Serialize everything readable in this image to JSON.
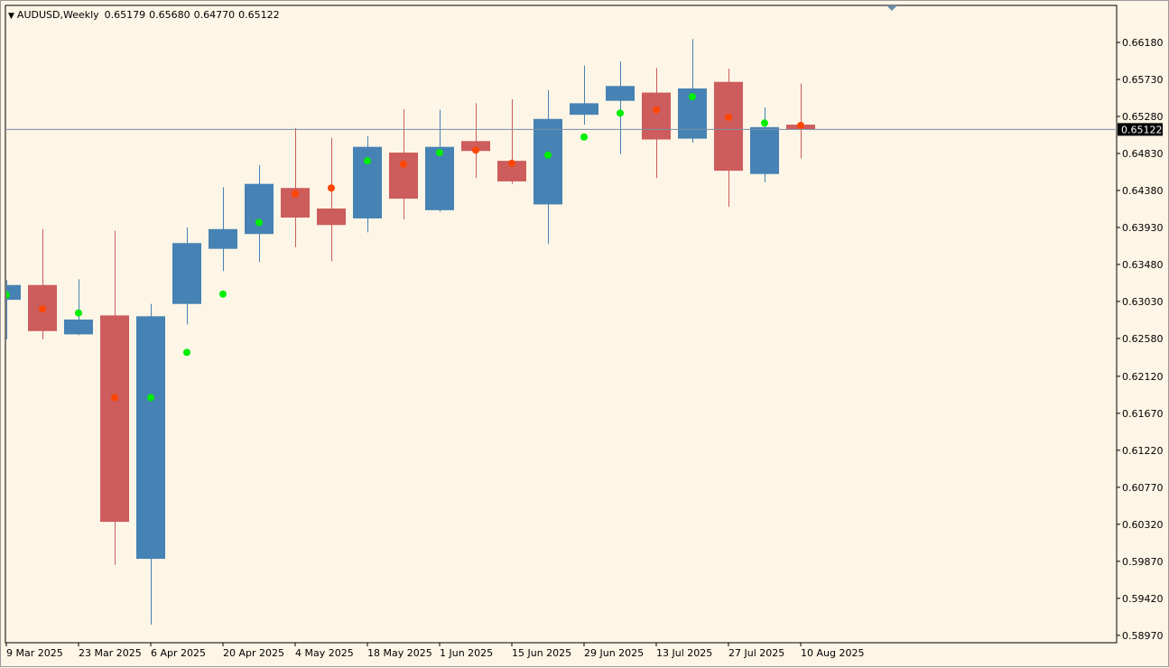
{
  "header": {
    "symbol": "AUDUSD,Weekly",
    "open": "0.65179",
    "high": "0.65680",
    "low": "0.64770",
    "close": "0.65122"
  },
  "colors": {
    "bull": "#4682b4",
    "bear": "#cd5c5c",
    "dot_bull": "#00ee00",
    "dot_bear": "#ff4500",
    "background": "#fdf5e6",
    "price_line": "#7a8fa6",
    "current_price_bg": "#000000",
    "current_price_text": "#ffffff"
  },
  "chart_data": {
    "type": "candlestick",
    "ylim": [
      0.5888,
      0.6663
    ],
    "y_ticks": [
      "0.66180",
      "0.65730",
      "0.65280",
      "0.64830",
      "0.64380",
      "0.63930",
      "0.63480",
      "0.63030",
      "0.62580",
      "0.62120",
      "0.61670",
      "0.61220",
      "0.60770",
      "0.60320",
      "0.59870",
      "0.59420",
      "0.58970"
    ],
    "x_labels": [
      "9 Mar 2025",
      "23 Mar 2025",
      "6 Apr 2025",
      "20 Apr 2025",
      "4 May 2025",
      "18 May 2025",
      "1 Jun 2025",
      "15 Jun 2025",
      "29 Jun 2025",
      "13 Jul 2025",
      "27 Jul 2025",
      "10 Aug 2025"
    ],
    "current_price": "0.65122",
    "candles": [
      {
        "o": 0.6305,
        "h": 0.6329,
        "l": 0.6257,
        "c": 0.6323,
        "dot": 0.6311
      },
      {
        "o": 0.6323,
        "h": 0.6391,
        "l": 0.6257,
        "c": 0.6267,
        "dot": 0.6294
      },
      {
        "o": 0.6263,
        "h": 0.633,
        "l": 0.6262,
        "c": 0.6281,
        "dot": 0.6289
      },
      {
        "o": 0.6286,
        "h": 0.6389,
        "l": 0.5983,
        "c": 0.6035,
        "dot": 0.6186
      },
      {
        "o": 0.599,
        "h": 0.63,
        "l": 0.591,
        "c": 0.6285,
        "dot": 0.6186
      },
      {
        "o": 0.63,
        "h": 0.6393,
        "l": 0.6275,
        "c": 0.6374,
        "dot": 0.6241
      },
      {
        "o": 0.6367,
        "h": 0.6442,
        "l": 0.634,
        "c": 0.6391,
        "dot": 0.6312
      },
      {
        "o": 0.6385,
        "h": 0.6469,
        "l": 0.6351,
        "c": 0.6446,
        "dot": 0.6399
      },
      {
        "o": 0.6441,
        "h": 0.6514,
        "l": 0.6369,
        "c": 0.6405,
        "dot": 0.6434
      },
      {
        "o": 0.6416,
        "h": 0.6502,
        "l": 0.6352,
        "c": 0.6396,
        "dot": 0.6441
      },
      {
        "o": 0.6404,
        "h": 0.6504,
        "l": 0.6387,
        "c": 0.6491,
        "dot": 0.6474
      },
      {
        "o": 0.6484,
        "h": 0.6537,
        "l": 0.6403,
        "c": 0.6428,
        "dot": 0.647
      },
      {
        "o": 0.6414,
        "h": 0.6536,
        "l": 0.6412,
        "c": 0.6491,
        "dot": 0.6484
      },
      {
        "o": 0.6498,
        "h": 0.6544,
        "l": 0.6453,
        "c": 0.6486,
        "dot": 0.6487
      },
      {
        "o": 0.6474,
        "h": 0.6549,
        "l": 0.6446,
        "c": 0.6449,
        "dot": 0.6471
      },
      {
        "o": 0.6421,
        "h": 0.656,
        "l": 0.6373,
        "c": 0.6525,
        "dot": 0.6481
      },
      {
        "o": 0.653,
        "h": 0.659,
        "l": 0.6518,
        "c": 0.6544,
        "dot": 0.6503
      },
      {
        "o": 0.6547,
        "h": 0.6595,
        "l": 0.6482,
        "c": 0.6565,
        "dot": 0.6532
      },
      {
        "o": 0.6557,
        "h": 0.6587,
        "l": 0.6453,
        "c": 0.65,
        "dot": 0.6536
      },
      {
        "o": 0.6501,
        "h": 0.6622,
        "l": 0.6496,
        "c": 0.6562,
        "dot": 0.6552
      },
      {
        "o": 0.657,
        "h": 0.6586,
        "l": 0.6418,
        "c": 0.6462,
        "dot": 0.6527
      },
      {
        "o": 0.6458,
        "h": 0.6539,
        "l": 0.6448,
        "c": 0.6515,
        "dot": 0.652
      },
      {
        "o": 0.6518,
        "h": 0.6568,
        "l": 0.6477,
        "c": 0.6512,
        "dot": 0.6517
      }
    ]
  }
}
